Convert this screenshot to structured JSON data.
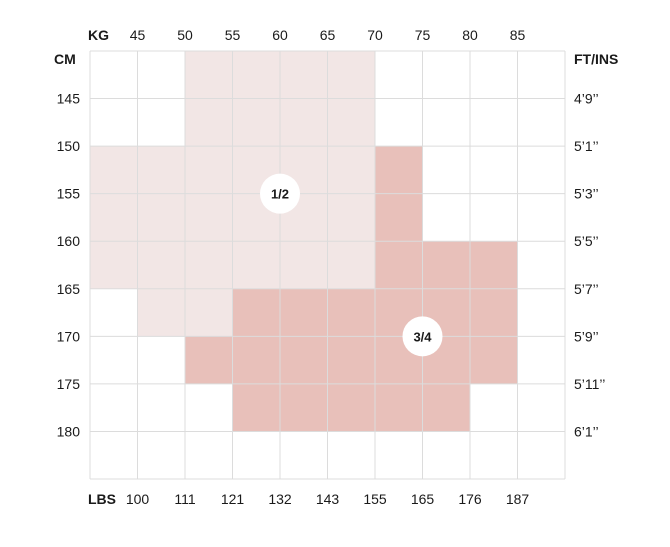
{
  "chart_data": {
    "type": "heatmap",
    "title": "",
    "x_unit_label": "KG",
    "x_alt_unit_label": "LBS",
    "y_unit_label": "CM",
    "y_alt_unit_label": "FT/INS",
    "x_ticks_kg": [
      45,
      50,
      55,
      60,
      65,
      70,
      75,
      80,
      85
    ],
    "x_ticks_lbs": [
      "100",
      "111",
      "121",
      "132",
      "143",
      "155",
      "165",
      "176",
      "187"
    ],
    "y_ticks_cm": [
      145,
      150,
      155,
      160,
      165,
      170,
      175,
      180
    ],
    "y_ticks_ftins": [
      "4’9’’",
      "5’1’’",
      "5’3’’",
      "5’5’’",
      "5’7’’",
      "5’9’’",
      "5’11’’",
      "6’1’’"
    ],
    "xlim": [
      40,
      90
    ],
    "ylim": [
      140,
      185
    ],
    "grid": true,
    "colors": {
      "size_1_2": "#f2e6e5",
      "size_3_4": "#e8c0ba",
      "grid": "#dcdcdc",
      "badge": "#ffffff"
    },
    "regions": [
      {
        "name": "1/2",
        "color_key": "size_1_2",
        "label_at": {
          "kg": 60,
          "cm": 155
        },
        "rows": [
          {
            "cm": [
              140,
              150
            ],
            "kg": [
              [
                50,
                70
              ]
            ]
          },
          {
            "cm": [
              150,
              165
            ],
            "kg": [
              [
                40,
                70
              ]
            ]
          },
          {
            "cm": [
              165,
              170
            ],
            "kg": [
              [
                45,
                55
              ]
            ]
          }
        ]
      },
      {
        "name": "3/4",
        "color_key": "size_3_4",
        "label_at": {
          "kg": 75,
          "cm": 170
        },
        "rows": [
          {
            "cm": [
              150,
              160
            ],
            "kg": [
              [
                70,
                75
              ]
            ]
          },
          {
            "cm": [
              160,
              165
            ],
            "kg": [
              [
                70,
                85
              ]
            ]
          },
          {
            "cm": [
              165,
              170
            ],
            "kg": [
              [
                55,
                85
              ]
            ]
          },
          {
            "cm": [
              170,
              175
            ],
            "kg": [
              [
                50,
                85
              ]
            ]
          },
          {
            "cm": [
              175,
              180
            ],
            "kg": [
              [
                55,
                80
              ]
            ]
          }
        ]
      }
    ]
  }
}
